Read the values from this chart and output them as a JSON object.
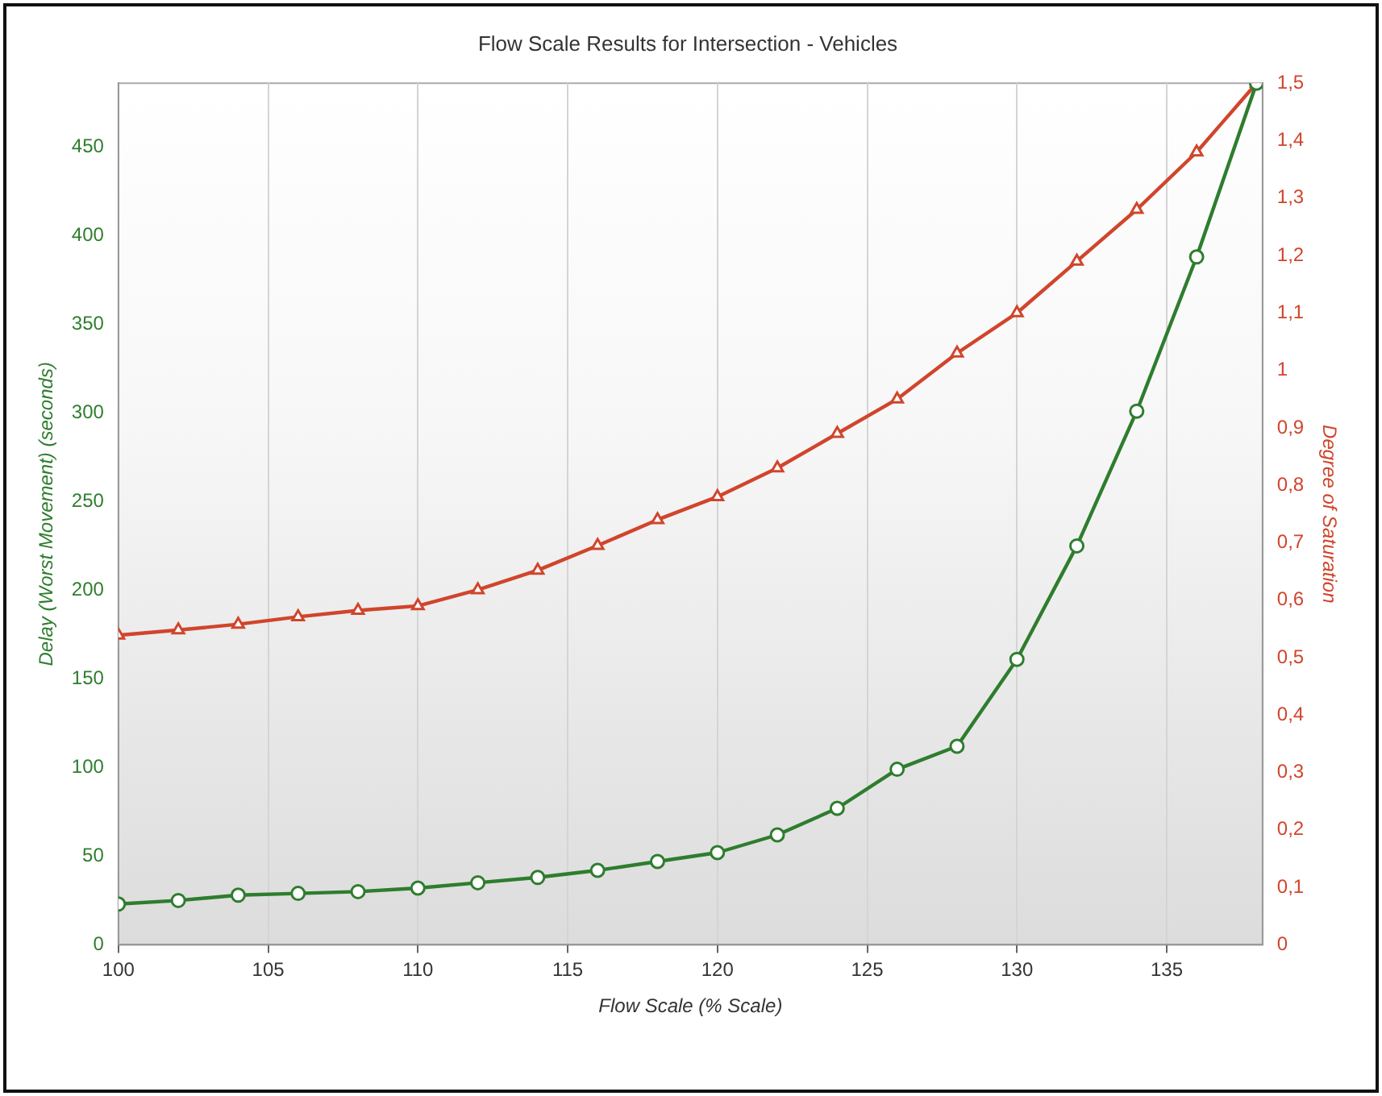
{
  "chart_data": {
    "type": "line",
    "title": "Flow Scale Results for Intersection - Vehicles",
    "xlabel": "Flow Scale (% Scale)",
    "ylabel": "Delay (Worst Movement) (seconds)",
    "y2label": "Degree of Saturation",
    "x": [
      100,
      102,
      104,
      106,
      108,
      110,
      112,
      114,
      116,
      118,
      120,
      122,
      124,
      126,
      128,
      130,
      132,
      134,
      136,
      138
    ],
    "xlim": [
      100,
      138.2
    ],
    "xticks": [
      100,
      105,
      110,
      115,
      120,
      125,
      130,
      135
    ],
    "ylim": [
      0,
      486
    ],
    "yticks": [
      0,
      50,
      100,
      150,
      200,
      250,
      300,
      350,
      400,
      450
    ],
    "y2lim": [
      0,
      1.5
    ],
    "y2ticks": [
      0,
      {
        "value": 0.1,
        "label": "0,1"
      },
      {
        "value": 0.2,
        "label": "0,2"
      },
      {
        "value": 0.3,
        "label": "0,3"
      },
      {
        "value": 0.4,
        "label": "0,4"
      },
      {
        "value": 0.5,
        "label": "0,5"
      },
      {
        "value": 0.6,
        "label": "0,6"
      },
      {
        "value": 0.7,
        "label": "0,7"
      },
      {
        "value": 0.8,
        "label": "0,8"
      },
      {
        "value": 0.9,
        "label": "0,9"
      },
      1,
      {
        "value": 1.1,
        "label": "1,1"
      },
      {
        "value": 1.2,
        "label": "1,2"
      },
      {
        "value": 1.3,
        "label": "1,3"
      },
      {
        "value": 1.4,
        "label": "1,4"
      },
      {
        "value": 1.5,
        "label": "1,5"
      }
    ],
    "grid": "x",
    "legend": false,
    "line_style": "solid",
    "series": [
      {
        "color": "#2e7d2e",
        "marker": "circle",
        "values": [
          23,
          25,
          28,
          29,
          30,
          32,
          35,
          38,
          42,
          47,
          52,
          62,
          77,
          99,
          112,
          161,
          225,
          301,
          388,
          486
        ]
      },
      {
        "color": "#d0452c",
        "marker": "triangle",
        "axis": "y2",
        "values": [
          0.539,
          0.548,
          0.558,
          0.571,
          0.582,
          0.59,
          0.618,
          0.652,
          0.695,
          0.74,
          0.78,
          0.83,
          0.89,
          0.95,
          1.03,
          1.1,
          1.19,
          1.28,
          1.38,
          1.5
        ]
      }
    ]
  }
}
